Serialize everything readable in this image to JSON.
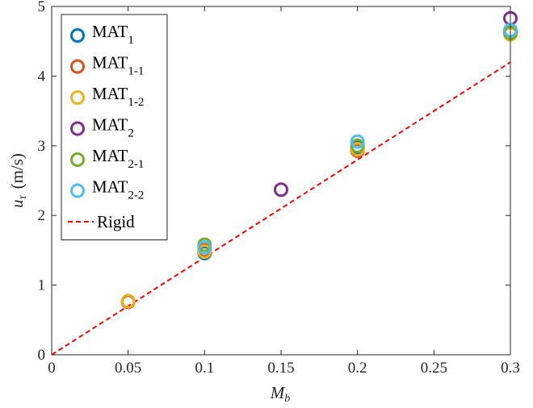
{
  "chart_data": {
    "type": "scatter",
    "title": "",
    "xlabel_main": "M",
    "xlabel_sub": "b",
    "ylabel_main": "u",
    "ylabel_sub": "τ",
    "ylabel_unit": "(m/s)",
    "xlim": [
      0,
      0.3
    ],
    "ylim": [
      0,
      5
    ],
    "x_ticks": [
      "0",
      "0.05",
      "0.1",
      "0.15",
      "0.2",
      "0.25",
      "0.3"
    ],
    "y_ticks": [
      "0",
      "1",
      "2",
      "3",
      "4",
      "5"
    ],
    "grid": false,
    "legend_position": "top-left",
    "series": [
      {
        "name": "MAT",
        "sub": "1",
        "color": "#0072BD",
        "marker": "circle",
        "points": [
          [
            0.05,
            0.76
          ],
          [
            0.1,
            1.46
          ],
          [
            0.2,
            2.97
          ],
          [
            0.3,
            4.62
          ]
        ]
      },
      {
        "name": "MAT",
        "sub": "1-1",
        "color": "#D95319",
        "marker": "circle",
        "points": [
          [
            0.05,
            0.76
          ],
          [
            0.1,
            1.5
          ],
          [
            0.2,
            2.93
          ],
          [
            0.3,
            4.62
          ]
        ]
      },
      {
        "name": "MAT",
        "sub": "1-2",
        "color": "#EDB120",
        "marker": "circle",
        "points": [
          [
            0.05,
            0.77
          ],
          [
            0.1,
            1.48
          ],
          [
            0.2,
            2.95
          ],
          [
            0.3,
            4.6
          ]
        ]
      },
      {
        "name": "MAT",
        "sub": "2",
        "color": "#7E2F8E",
        "marker": "circle",
        "points": [
          [
            0.15,
            2.37
          ],
          [
            0.3,
            4.83
          ]
        ]
      },
      {
        "name": "MAT",
        "sub": "2-1",
        "color": "#77AC30",
        "marker": "circle",
        "points": [
          [
            0.1,
            1.58
          ],
          [
            0.2,
            3.0
          ],
          [
            0.3,
            4.62
          ]
        ]
      },
      {
        "name": "MAT",
        "sub": "2-2",
        "color": "#4DBEEE",
        "marker": "circle",
        "points": [
          [
            0.1,
            1.54
          ],
          [
            0.2,
            3.06
          ],
          [
            0.3,
            4.66
          ]
        ]
      }
    ],
    "reference_line": {
      "name": "Rigid",
      "color": "#FF0000",
      "style": "dashed",
      "points": [
        [
          0,
          0
        ],
        [
          0.3,
          4.2
        ]
      ]
    }
  }
}
